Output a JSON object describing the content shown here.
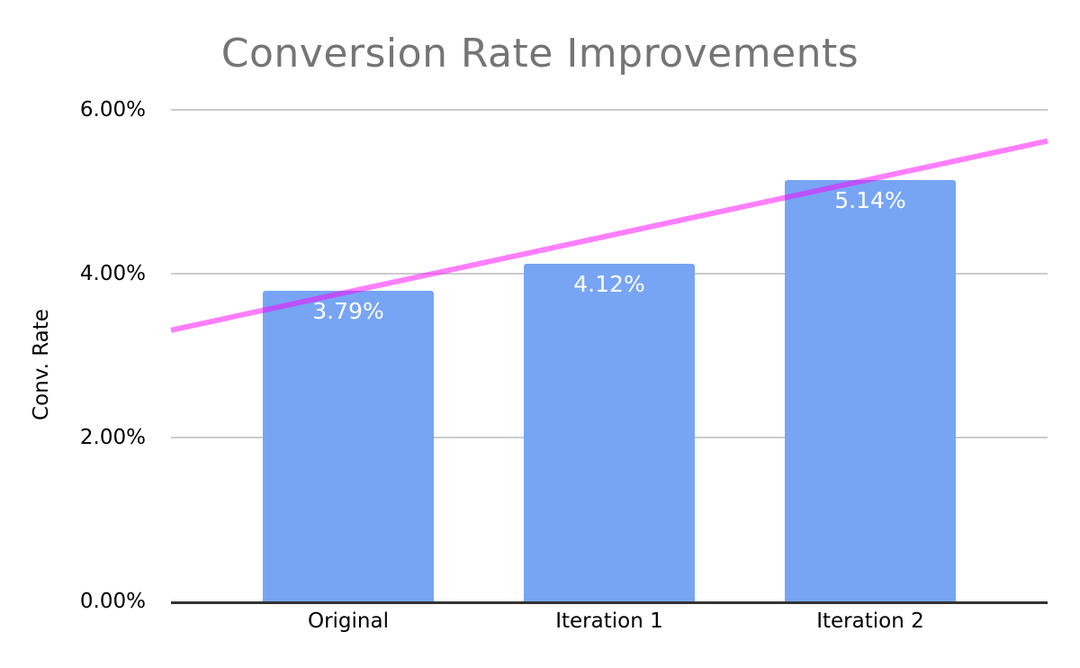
{
  "chart_data": {
    "type": "bar",
    "title": "Conversion Rate Improvements",
    "xlabel": "",
    "ylabel": "Conv. Rate",
    "categories": [
      "Original",
      "Iteration 1",
      "Iteration 2"
    ],
    "series": [
      {
        "values": [
          3.79,
          4.12,
          5.14
        ],
        "data_labels": [
          "3.79%",
          "4.12%",
          "5.14%"
        ]
      }
    ],
    "trendline": {
      "type": "linear",
      "start_value": 3.31,
      "end_value": 5.62
    },
    "y_axis": {
      "min": 0,
      "max": 6,
      "ticks": [
        0,
        2,
        4,
        6
      ],
      "tick_labels": [
        "0.00%",
        "2.00%",
        "4.00%",
        "6.00%"
      ]
    },
    "grid": true,
    "legend": "none",
    "colors": {
      "bar": "#77a5f3",
      "trendline": "#ff00ff",
      "trendline_opacity": 0.5,
      "title_text": "#757575",
      "axis_text": "#000000",
      "data_label_text": "#ffffff",
      "gridline": "#cccccc",
      "baseline": "#333333",
      "background": "#ffffff"
    }
  }
}
